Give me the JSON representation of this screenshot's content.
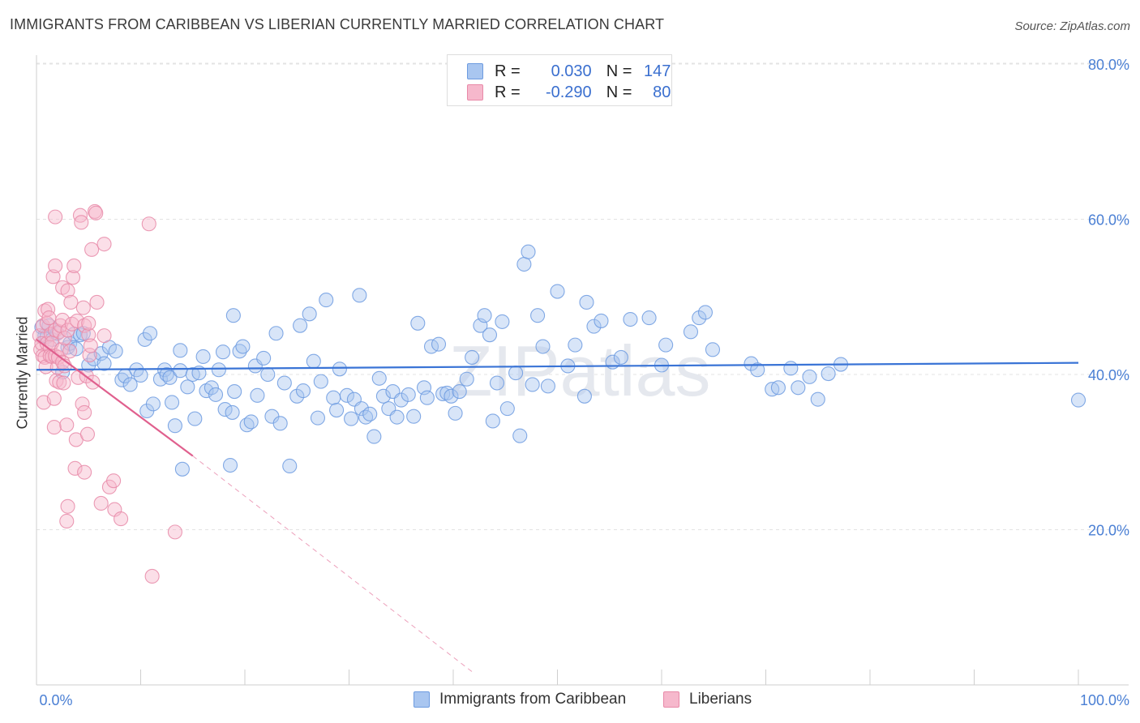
{
  "title": "IMMIGRANTS FROM CARIBBEAN VS LIBERIAN CURRENTLY MARRIED CORRELATION CHART",
  "source": "Source: ZipAtlas.com",
  "watermark": "ZIPatlas",
  "legend": {
    "rows": [
      {
        "r_label": "R =",
        "r_value": "0.030",
        "n_label": "N =",
        "n_value": "147",
        "color": "#a9c6f0",
        "border": "#6d9be0"
      },
      {
        "r_label": "R =",
        "r_value": "-0.290",
        "n_label": "N =",
        "n_value": "80",
        "color": "#f6b8cc",
        "border": "#e889a8"
      }
    ]
  },
  "bottom_legend": [
    {
      "label": "Immigrants from Caribbean",
      "color": "#a9c6f0",
      "border": "#6d9be0"
    },
    {
      "label": "Liberians",
      "color": "#f6b8cc",
      "border": "#e889a8"
    }
  ],
  "chart_data": {
    "type": "scatter",
    "ylabel": "Currently Married",
    "xlabel": "",
    "xlim": [
      0,
      100
    ],
    "ylim": [
      0,
      84
    ],
    "x_tick_labels": [
      "0.0%",
      "100.0%"
    ],
    "y_tick_labels": [
      {
        "value": 20,
        "label": "20.0%"
      },
      {
        "value": 40,
        "label": "40.0%"
      },
      {
        "value": 60,
        "label": "60.0%"
      },
      {
        "value": 80,
        "label": "80.0%"
      }
    ],
    "grid": true,
    "series": [
      {
        "name": "Immigrants from Caribbean",
        "color": "#6d9be0",
        "fill": "#a9c6f0",
        "trend": {
          "x0": 0,
          "y0": 40.6,
          "x1": 100,
          "y1": 41.5,
          "color": "#3a74d6"
        },
        "points": [
          [
            0.5,
            46.1
          ],
          [
            0.8,
            45.0
          ],
          [
            1.0,
            44.9
          ],
          [
            1.2,
            46.3
          ],
          [
            1.5,
            44.5
          ],
          [
            2.0,
            45.3
          ],
          [
            2.5,
            40.3
          ],
          [
            3.0,
            43.5
          ],
          [
            3.2,
            44.0
          ],
          [
            3.6,
            45.2
          ],
          [
            3.8,
            43.3
          ],
          [
            4.2,
            45.1
          ],
          [
            4.5,
            45.3
          ],
          [
            5.0,
            41.2
          ],
          [
            5.5,
            42.0
          ],
          [
            6.2,
            42.7
          ],
          [
            6.5,
            41.4
          ],
          [
            7.0,
            43.5
          ],
          [
            7.6,
            43.0
          ],
          [
            8.2,
            39.3
          ],
          [
            8.5,
            39.8
          ],
          [
            9.0,
            38.7
          ],
          [
            9.6,
            40.6
          ],
          [
            10.0,
            39.9
          ],
          [
            10.4,
            44.5
          ],
          [
            10.6,
            35.3
          ],
          [
            10.9,
            45.3
          ],
          [
            11.2,
            36.2
          ],
          [
            11.9,
            39.4
          ],
          [
            12.3,
            40.6
          ],
          [
            12.5,
            40.0
          ],
          [
            12.8,
            39.6
          ],
          [
            13.0,
            36.4
          ],
          [
            13.3,
            33.4
          ],
          [
            13.8,
            43.1
          ],
          [
            13.8,
            40.5
          ],
          [
            14.0,
            27.8
          ],
          [
            14.5,
            38.4
          ],
          [
            15.0,
            40.0
          ],
          [
            15.2,
            34.3
          ],
          [
            15.6,
            40.2
          ],
          [
            16.0,
            42.3
          ],
          [
            16.3,
            37.9
          ],
          [
            16.8,
            38.3
          ],
          [
            17.2,
            37.4
          ],
          [
            17.5,
            40.6
          ],
          [
            17.9,
            42.9
          ],
          [
            18.1,
            35.5
          ],
          [
            18.6,
            28.3
          ],
          [
            18.8,
            35.1
          ],
          [
            18.9,
            47.6
          ],
          [
            19.0,
            37.8
          ],
          [
            19.5,
            43.0
          ],
          [
            19.8,
            43.6
          ],
          [
            20.2,
            33.5
          ],
          [
            20.6,
            33.9
          ],
          [
            21.0,
            41.1
          ],
          [
            21.2,
            37.3
          ],
          [
            21.8,
            42.1
          ],
          [
            22.2,
            40.0
          ],
          [
            22.6,
            34.6
          ],
          [
            23.0,
            45.3
          ],
          [
            23.4,
            33.7
          ],
          [
            23.8,
            38.9
          ],
          [
            24.3,
            28.2
          ],
          [
            25.0,
            37.2
          ],
          [
            25.3,
            46.3
          ],
          [
            25.6,
            37.9
          ],
          [
            26.2,
            47.8
          ],
          [
            26.6,
            41.7
          ],
          [
            27.0,
            34.4
          ],
          [
            27.3,
            39.1
          ],
          [
            27.8,
            49.6
          ],
          [
            28.5,
            37.0
          ],
          [
            28.8,
            35.4
          ],
          [
            29.1,
            40.7
          ],
          [
            29.8,
            37.3
          ],
          [
            30.2,
            34.3
          ],
          [
            30.5,
            36.8
          ],
          [
            31.0,
            50.2
          ],
          [
            31.2,
            35.6
          ],
          [
            31.6,
            34.5
          ],
          [
            32.0,
            34.9
          ],
          [
            32.4,
            32.0
          ],
          [
            32.9,
            39.5
          ],
          [
            33.3,
            37.2
          ],
          [
            33.8,
            35.6
          ],
          [
            34.2,
            37.8
          ],
          [
            34.6,
            34.5
          ],
          [
            35.0,
            36.7
          ],
          [
            35.7,
            37.4
          ],
          [
            36.2,
            34.6
          ],
          [
            36.6,
            46.6
          ],
          [
            37.2,
            38.3
          ],
          [
            37.5,
            37.0
          ],
          [
            37.9,
            43.6
          ],
          [
            38.6,
            43.9
          ],
          [
            39.0,
            37.5
          ],
          [
            39.4,
            37.6
          ],
          [
            39.8,
            37.2
          ],
          [
            40.2,
            35.0
          ],
          [
            40.6,
            37.8
          ],
          [
            41.3,
            39.4
          ],
          [
            41.8,
            42.2
          ],
          [
            42.6,
            46.3
          ],
          [
            43.0,
            47.6
          ],
          [
            43.5,
            45.1
          ],
          [
            43.8,
            34.0
          ],
          [
            44.2,
            38.9
          ],
          [
            44.7,
            46.8
          ],
          [
            45.2,
            35.6
          ],
          [
            46.0,
            40.2
          ],
          [
            46.4,
            32.1
          ],
          [
            46.8,
            54.2
          ],
          [
            47.2,
            55.8
          ],
          [
            47.6,
            38.7
          ],
          [
            48.1,
            47.6
          ],
          [
            48.6,
            43.6
          ],
          [
            49.1,
            38.5
          ],
          [
            50.0,
            50.7
          ],
          [
            51.0,
            41.1
          ],
          [
            51.7,
            43.8
          ],
          [
            52.6,
            37.2
          ],
          [
            52.8,
            49.3
          ],
          [
            53.5,
            46.2
          ],
          [
            54.2,
            46.9
          ],
          [
            55.3,
            41.6
          ],
          [
            56.1,
            42.2
          ],
          [
            57.0,
            47.1
          ],
          [
            58.8,
            47.3
          ],
          [
            60.0,
            41.2
          ],
          [
            60.4,
            43.8
          ],
          [
            62.8,
            45.5
          ],
          [
            63.6,
            47.3
          ],
          [
            64.2,
            48.0
          ],
          [
            64.9,
            43.2
          ],
          [
            68.6,
            41.4
          ],
          [
            69.2,
            40.6
          ],
          [
            70.6,
            38.1
          ],
          [
            71.2,
            38.3
          ],
          [
            72.4,
            40.8
          ],
          [
            73.1,
            38.3
          ],
          [
            74.2,
            39.7
          ],
          [
            75.0,
            36.8
          ],
          [
            76.0,
            40.1
          ],
          [
            77.2,
            41.3
          ],
          [
            100.0,
            36.7
          ]
        ]
      },
      {
        "name": "Liberians",
        "color": "#e889a8",
        "fill": "#f6b8cc",
        "trend": {
          "x0": 0,
          "y0": 44.5,
          "x1": 15.0,
          "y1": 29.5,
          "color": "#e0608e",
          "dash_to": {
            "x": 42.0,
            "y": 1.5
          }
        },
        "points": [
          [
            0.3,
            45.0
          ],
          [
            0.4,
            43.2
          ],
          [
            0.5,
            44.0
          ],
          [
            0.6,
            42.4
          ],
          [
            0.6,
            46.3
          ],
          [
            0.7,
            36.4
          ],
          [
            0.8,
            48.2
          ],
          [
            0.8,
            42.2
          ],
          [
            0.9,
            41.0
          ],
          [
            1.0,
            46.6
          ],
          [
            1.0,
            44.0
          ],
          [
            1.1,
            48.4
          ],
          [
            1.2,
            47.3
          ],
          [
            1.3,
            43.5
          ],
          [
            1.3,
            42.4
          ],
          [
            1.4,
            45.2
          ],
          [
            1.5,
            42.3
          ],
          [
            1.5,
            44.1
          ],
          [
            1.6,
            52.6
          ],
          [
            1.7,
            33.2
          ],
          [
            1.7,
            36.9
          ],
          [
            1.8,
            42.4
          ],
          [
            1.8,
            45.7
          ],
          [
            1.8,
            54.0
          ],
          [
            1.8,
            60.3
          ],
          [
            1.9,
            39.2
          ],
          [
            2.0,
            40.9
          ],
          [
            2.1,
            42.2
          ],
          [
            2.2,
            45.5
          ],
          [
            2.2,
            39.0
          ],
          [
            2.3,
            46.3
          ],
          [
            2.4,
            43.2
          ],
          [
            2.5,
            41.6
          ],
          [
            2.5,
            51.2
          ],
          [
            2.5,
            47.0
          ],
          [
            2.6,
            38.9
          ],
          [
            2.7,
            41.1
          ],
          [
            2.7,
            44.7
          ],
          [
            2.9,
            33.5
          ],
          [
            2.9,
            21.1
          ],
          [
            3.0,
            23.0
          ],
          [
            3.0,
            50.8
          ],
          [
            3.0,
            45.7
          ],
          [
            3.2,
            43.0
          ],
          [
            3.3,
            49.3
          ],
          [
            3.4,
            46.5
          ],
          [
            3.5,
            52.5
          ],
          [
            3.6,
            54.0
          ],
          [
            3.7,
            27.9
          ],
          [
            3.8,
            31.6
          ],
          [
            3.9,
            46.9
          ],
          [
            4.0,
            39.6
          ],
          [
            4.2,
            60.5
          ],
          [
            4.3,
            59.6
          ],
          [
            4.4,
            36.2
          ],
          [
            4.5,
            48.6
          ],
          [
            4.6,
            35.1
          ],
          [
            4.6,
            46.3
          ],
          [
            4.6,
            27.4
          ],
          [
            4.8,
            39.8
          ],
          [
            4.9,
            32.3
          ],
          [
            5.0,
            45.1
          ],
          [
            5.0,
            46.6
          ],
          [
            5.1,
            42.5
          ],
          [
            5.2,
            43.7
          ],
          [
            5.3,
            56.1
          ],
          [
            5.4,
            39.0
          ],
          [
            5.6,
            61.0
          ],
          [
            5.7,
            60.8
          ],
          [
            5.8,
            49.3
          ],
          [
            6.2,
            23.4
          ],
          [
            6.5,
            45.0
          ],
          [
            6.5,
            56.8
          ],
          [
            7.0,
            25.5
          ],
          [
            7.4,
            26.3
          ],
          [
            7.5,
            22.6
          ],
          [
            8.1,
            21.4
          ],
          [
            10.8,
            59.4
          ],
          [
            11.1,
            14.0
          ],
          [
            13.3,
            19.7
          ]
        ]
      }
    ]
  }
}
